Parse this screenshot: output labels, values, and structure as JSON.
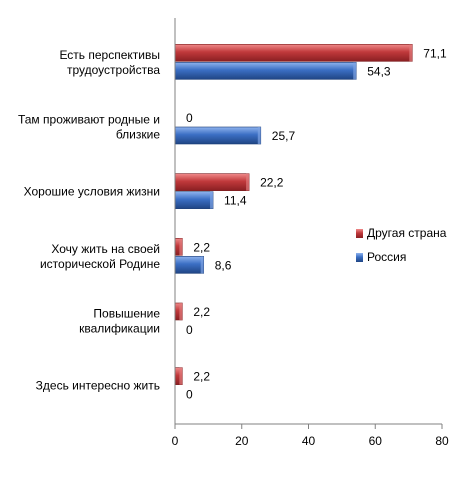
{
  "chart_data": {
    "type": "bar",
    "orientation": "horizontal",
    "categories": [
      [
        "Есть перспективы",
        "трудоустройства"
      ],
      [
        "Там проживают  родные и",
        "близкие"
      ],
      [
        "Хорошие условия жизни"
      ],
      [
        "Хочу жить на своей",
        "исторической Родине"
      ],
      [
        "Повышение",
        "квалификации"
      ],
      [
        "Здесь интересно жить"
      ]
    ],
    "series": [
      {
        "name": "Другая страна",
        "color": "#c0393b",
        "values": [
          71.1,
          0,
          22.2,
          2.2,
          2.2,
          2.2
        ],
        "labels": [
          "71,1",
          "0",
          "22,2",
          "2,2",
          "2,2",
          "2,2"
        ]
      },
      {
        "name": "Россия",
        "color": "#3b6fc4",
        "values": [
          54.3,
          25.7,
          11.4,
          8.6,
          0,
          0
        ],
        "labels": [
          "54,3",
          "25,7",
          "11,4",
          "8,6",
          "0",
          "0"
        ]
      }
    ],
    "xlim": [
      0,
      80
    ],
    "xticks": [
      "0",
      "20",
      "40",
      "60",
      "80"
    ],
    "legend_position": "right",
    "grid": false
  }
}
